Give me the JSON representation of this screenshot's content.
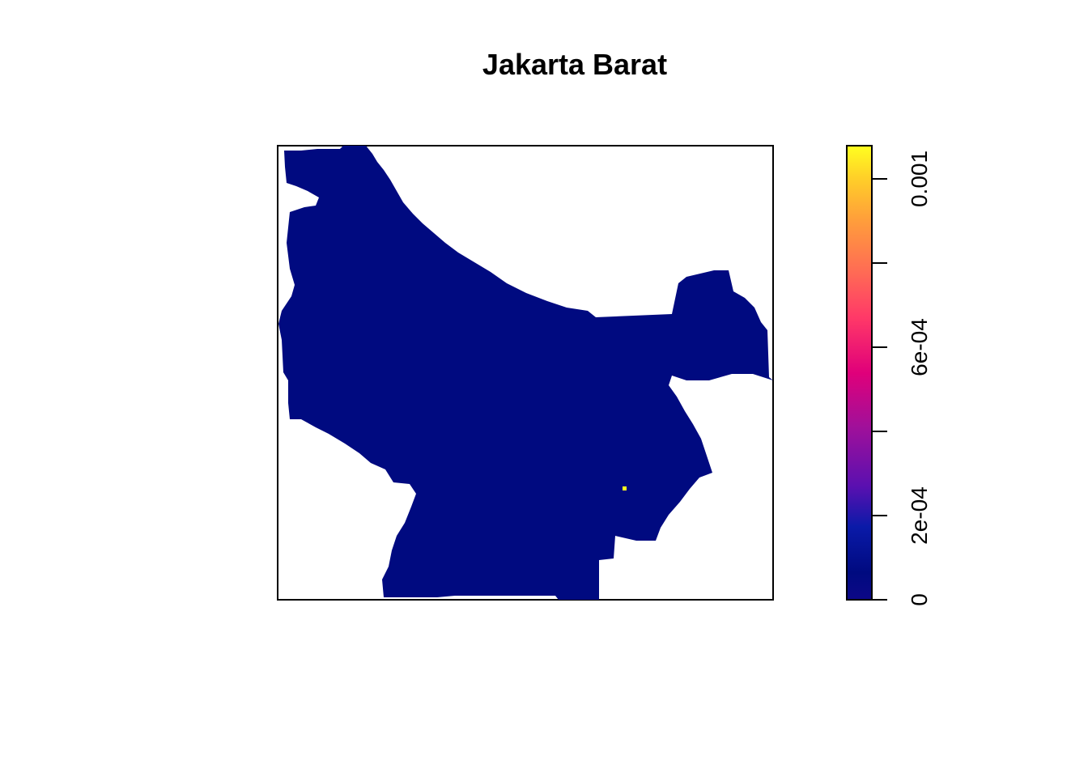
{
  "map": {
    "title": "Jakarta Barat",
    "region_fill": "#000A80",
    "hotspot_color": "#FFFF20",
    "frame_color": "#000000",
    "background": "#FFFFFF"
  },
  "legend": {
    "type": "continuous-colorbar",
    "palette": "plasma",
    "range": [
      0,
      0.00106
    ],
    "ticks": [
      {
        "value": 0,
        "label": "0"
      },
      {
        "value": 0.0002,
        "label": "2e-04"
      },
      {
        "value": 0.0004,
        "label": ""
      },
      {
        "value": 0.0006,
        "label": "6e-04"
      },
      {
        "value": 0.0008,
        "label": ""
      },
      {
        "value": 0.001,
        "label": "0.001"
      }
    ],
    "colors": [
      "#0D0887",
      "#001A9A",
      "#2A23A0",
      "#6A00A8",
      "#A01A9C",
      "#D8006F",
      "#FF3D67",
      "#FF6E54",
      "#FFA03A",
      "#FFD325",
      "#FFFF20"
    ]
  }
}
